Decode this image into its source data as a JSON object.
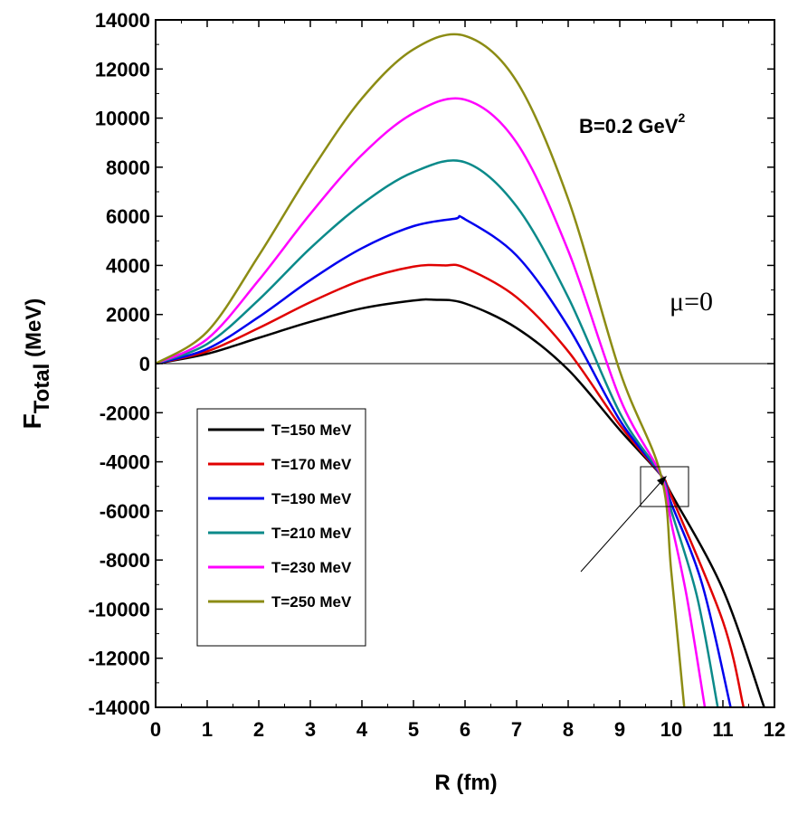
{
  "chart_data": {
    "type": "line",
    "xlabel": "R (fm)",
    "ylabel_main": "F",
    "ylabel_sub": "Total",
    "ylabel_unit": " (MeV)",
    "xlim": [
      0,
      12
    ],
    "ylim": [
      -14000,
      14000
    ],
    "x_ticks": [
      0,
      1,
      2,
      3,
      4,
      5,
      6,
      7,
      8,
      9,
      10,
      11,
      12
    ],
    "y_ticks": [
      -14000,
      -12000,
      -10000,
      -8000,
      -6000,
      -4000,
      -2000,
      0,
      2000,
      4000,
      6000,
      8000,
      10000,
      12000,
      14000
    ],
    "grid": false,
    "legend_position": "lower-left",
    "annotations": {
      "field_main": "B=0.2 GeV",
      "field_sup": "2",
      "chem_symbol": "μ",
      "chem_value": "=0"
    },
    "series": [
      {
        "name": "T=150 MeV",
        "color": "#000000",
        "x": [
          0,
          1,
          2,
          3,
          4,
          5,
          5.4,
          6,
          7,
          8,
          9,
          9.8,
          10,
          11,
          11.8
        ],
        "y": [
          0,
          400,
          1050,
          1700,
          2250,
          2570,
          2600,
          2450,
          1450,
          -250,
          -2700,
          -4550,
          -5300,
          -9200,
          -14000
        ]
      },
      {
        "name": "T=170 MeV",
        "color": "#e00000",
        "x": [
          0,
          1,
          2,
          3,
          4,
          5,
          5.6,
          6,
          7,
          8,
          9,
          9.8,
          10,
          11,
          11.4
        ],
        "y": [
          0,
          500,
          1450,
          2500,
          3400,
          3950,
          4000,
          3900,
          2700,
          500,
          -2500,
          -4550,
          -5400,
          -10500,
          -14000
        ]
      },
      {
        "name": "T=190 MeV",
        "color": "#0000ee",
        "x": [
          0,
          1,
          2,
          3,
          4,
          5,
          5.8,
          6,
          7,
          8,
          9,
          9.8,
          10,
          10.6,
          11.15
        ],
        "y": [
          0,
          600,
          1900,
          3400,
          4700,
          5600,
          5900,
          5880,
          4400,
          1500,
          -2300,
          -4550,
          -5700,
          -9000,
          -14000
        ]
      },
      {
        "name": "T=210 MeV",
        "color": "#0b8a8a",
        "x": [
          0,
          1,
          2,
          3,
          4,
          5,
          6,
          7,
          8,
          9,
          9.8,
          10,
          10.5,
          10.9
        ],
        "y": [
          0,
          800,
          2600,
          4700,
          6500,
          7800,
          8200,
          6400,
          2700,
          -2000,
          -4550,
          -6000,
          -9500,
          -14000
        ]
      },
      {
        "name": "T=230 MeV",
        "color": "#ff00ff",
        "x": [
          0,
          1,
          2,
          3,
          4,
          5,
          6,
          7,
          8,
          9,
          9.8,
          10,
          10.3,
          10.65
        ],
        "y": [
          0,
          1000,
          3400,
          6100,
          8500,
          10200,
          10750,
          9000,
          4600,
          -1400,
          -4550,
          -6500,
          -9500,
          -14000
        ]
      },
      {
        "name": "T=250 MeV",
        "color": "#8c8c14",
        "x": [
          0,
          1,
          2,
          3,
          4,
          5,
          6,
          7,
          8,
          9,
          9.8,
          10,
          10.25
        ],
        "y": [
          0,
          1300,
          4400,
          7800,
          10800,
          12800,
          13350,
          11500,
          6700,
          -300,
          -4550,
          -8500,
          -14000
        ]
      }
    ]
  }
}
